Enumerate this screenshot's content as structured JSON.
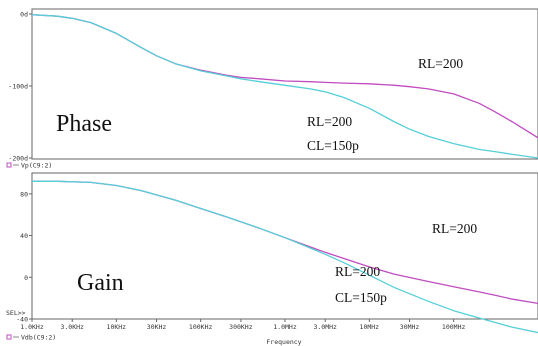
{
  "chart_data": [
    {
      "type": "line",
      "panel": "top",
      "title": "",
      "panel_label": "Phase",
      "legend": "Vp(C9:2)",
      "yticks": [
        {
          "value": 0,
          "label": "0d"
        },
        {
          "value": -100,
          "label": "-100d"
        },
        {
          "value": -200,
          "label": "-200d"
        }
      ],
      "ylim": [
        -200,
        0
      ],
      "xscale": "log",
      "xlim": [
        1000,
        1000000000
      ],
      "grid": false,
      "series": [
        {
          "color": "#c04cc0",
          "x": [
            1000,
            2000,
            3000,
            5000,
            10000,
            20000,
            30000,
            50000,
            100000,
            200000,
            300000,
            500000,
            1000000,
            2000000,
            3000000,
            5000000,
            10000000,
            20000000,
            30000000,
            50000000,
            100000000,
            200000000,
            300000000,
            500000000,
            1000000000
          ],
          "y": [
            -1,
            -3,
            -6,
            -12,
            -27,
            -47,
            -58,
            -69,
            -78,
            -85,
            -88,
            -90,
            -93,
            -94,
            -95,
            -96,
            -97,
            -99,
            -101,
            -104,
            -111,
            -124,
            -135,
            -150,
            -172
          ]
        },
        {
          "color": "#55cfd8",
          "x": [
            1000,
            2000,
            3000,
            5000,
            10000,
            20000,
            30000,
            50000,
            100000,
            200000,
            300000,
            500000,
            1000000,
            2000000,
            3000000,
            5000000,
            10000000,
            20000000,
            30000000,
            50000000,
            100000000,
            200000000,
            300000000,
            500000000,
            1000000000
          ],
          "y": [
            -1,
            -3,
            -6,
            -12,
            -27,
            -47,
            -58,
            -69,
            -79,
            -86,
            -90,
            -94,
            -99,
            -104,
            -108,
            -116,
            -131,
            -150,
            -160,
            -170,
            -180,
            -188,
            -191,
            -195,
            -200
          ]
        }
      ],
      "annotations": [
        {
          "text": "RL=200"
        },
        {
          "text": "RL=200"
        },
        {
          "text": "CL=150p"
        }
      ]
    },
    {
      "type": "line",
      "panel": "bottom",
      "title": "",
      "panel_label": "Gain",
      "legend": "Vdb(C9:2)",
      "xlabel": "Frequency",
      "yticks": [
        {
          "value": 80,
          "label": "80"
        },
        {
          "value": 40,
          "label": "40"
        },
        {
          "value": 0,
          "label": "0"
        },
        {
          "value": -40,
          "label": "-40"
        }
      ],
      "ylim": [
        -40,
        100
      ],
      "xscale": "log",
      "xlim": [
        1000,
        1000000000
      ],
      "xticks": [
        {
          "value": 1000,
          "label": "1.0KHz"
        },
        {
          "value": 3000,
          "label": "3.0KHz"
        },
        {
          "value": 10000,
          "label": "10KHz"
        },
        {
          "value": 30000,
          "label": "30KHz"
        },
        {
          "value": 100000,
          "label": "100KHz"
        },
        {
          "value": 300000,
          "label": "300KHz"
        },
        {
          "value": 1000000,
          "label": "1.0MHz"
        },
        {
          "value": 3000000,
          "label": "3.0MHz"
        },
        {
          "value": 10000000,
          "label": "10MHz"
        },
        {
          "value": 30000000,
          "label": "30MHz"
        },
        {
          "value": 100000000,
          "label": "100MHz"
        }
      ],
      "grid": false,
      "series": [
        {
          "color": "#c04cc0",
          "x": [
            1000,
            2000,
            5000,
            10000,
            20000,
            50000,
            100000,
            200000,
            500000,
            1000000,
            2000000,
            3000000,
            5000000,
            10000000,
            20000000,
            50000000,
            100000000,
            200000000,
            300000000,
            500000000,
            1000000000
          ],
          "y": [
            92,
            92,
            91,
            88,
            83,
            74,
            66,
            58,
            47,
            38,
            29,
            24,
            18,
            10,
            3,
            -4,
            -9,
            -14,
            -17,
            -21,
            -25
          ]
        },
        {
          "color": "#55cfd8",
          "x": [
            1000,
            2000,
            5000,
            10000,
            20000,
            50000,
            100000,
            200000,
            500000,
            1000000,
            2000000,
            3000000,
            5000000,
            10000000,
            20000000,
            50000000,
            100000000,
            200000000,
            300000000,
            500000000,
            1000000000
          ],
          "y": [
            92,
            92,
            91,
            88,
            83,
            74,
            66,
            58,
            47,
            38,
            28,
            22,
            14,
            2,
            -10,
            -23,
            -32,
            -39,
            -43,
            -48,
            -53
          ]
        }
      ],
      "annotations": [
        {
          "text": "RL=200"
        },
        {
          "text": "RL=200"
        },
        {
          "text": "CL=150p"
        }
      ],
      "footer_prompt": "SEL>>"
    }
  ]
}
